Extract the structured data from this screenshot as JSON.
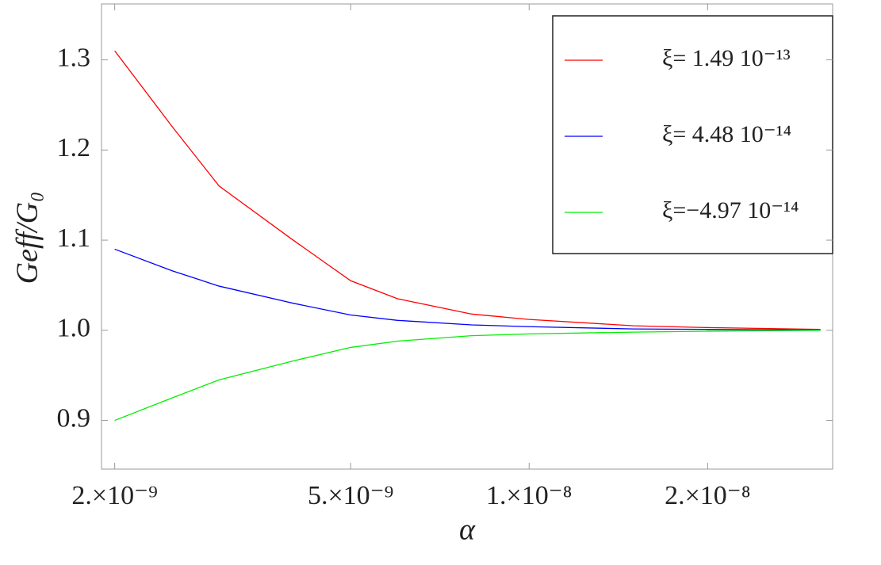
{
  "chart_data": {
    "type": "line",
    "x_label": "α",
    "y_label": "Geff/G₀",
    "xscale": "log",
    "x": [
      2e-09,
      2.5e-09,
      3e-09,
      4e-09,
      5e-09,
      6e-09,
      8e-09,
      1e-08,
      1.5e-08,
      2e-08,
      3.1e-08
    ],
    "series": [
      {
        "name": "ξ=  1.49 10⁻¹³",
        "color": "#ff0000",
        "values": [
          1.31,
          1.226,
          1.16,
          1.1,
          1.055,
          1.035,
          1.018,
          1.012,
          1.005,
          1.003,
          1.001
        ]
      },
      {
        "name": "ξ=  4.48 10⁻¹⁴",
        "color": "#0000ff",
        "values": [
          1.09,
          1.066,
          1.049,
          1.03,
          1.017,
          1.011,
          1.006,
          1.004,
          1.0015,
          1.001,
          1.0003
        ]
      },
      {
        "name": "ξ=−4.97 10⁻¹⁴",
        "color": "#00ee00",
        "values": [
          0.9,
          0.925,
          0.945,
          0.966,
          0.981,
          0.988,
          0.994,
          0.996,
          0.998,
          0.999,
          1.0
        ]
      }
    ],
    "xlim": [
      1.9e-09,
      3.25e-08
    ],
    "xticks": [
      {
        "value": 2e-09,
        "label": "2.×10⁻⁹"
      },
      {
        "value": 5e-09,
        "label": "5.×10⁻⁹"
      },
      {
        "value": 1e-08,
        "label": "1.×10⁻⁸"
      },
      {
        "value": 2e-08,
        "label": "2.×10⁻⁸"
      }
    ],
    "ylim": [
      0.846,
      1.362
    ],
    "yticks": [
      0.9,
      {
        "value": 1,
        "label": "1.0"
      },
      1.1,
      1.2,
      1.3
    ],
    "legend": "top-right"
  }
}
